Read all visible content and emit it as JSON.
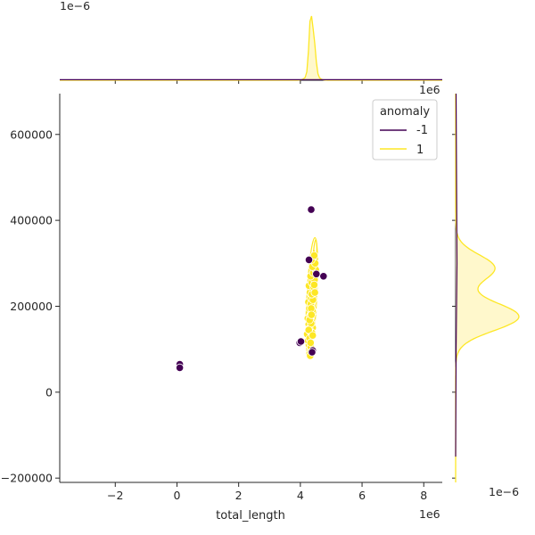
{
  "chart_data": {
    "type": "scatter",
    "xlabel": "total_length",
    "ylabel": "",
    "x_offset_label": "1e6",
    "xlim": [
      -3.8,
      8.6
    ],
    "ylim": [
      -210000,
      695000
    ],
    "x_ticks": [
      -2,
      0,
      2,
      4,
      6,
      8
    ],
    "x_tick_labels": [
      "−2",
      "0",
      "2",
      "4",
      "6",
      "8"
    ],
    "y_ticks": [
      -200000,
      0,
      200000,
      400000,
      600000
    ],
    "y_tick_labels": [
      "−200000",
      "0",
      "200000",
      "400000",
      "600000"
    ],
    "marginal_top_offset_label": "1e−6",
    "marginal_right_offset_label": "1e−6",
    "marginal_right_top_label": "1e6",
    "legend": {
      "title": "anomaly",
      "placement": "top-right",
      "entries": [
        {
          "label": "-1",
          "color": "#440154"
        },
        {
          "label": "1",
          "color": "#fde725"
        }
      ]
    },
    "colors": {
      "anomaly_-1": "#440154",
      "anomaly_1": "#fde725",
      "fill_1": "#fff7c6"
    },
    "series": [
      {
        "name": "-1",
        "color": "#440154",
        "points": [
          [
            0.09,
            65000
          ],
          [
            0.09,
            57000
          ],
          [
            4.35,
            425000
          ],
          [
            4.28,
            308000
          ],
          [
            4.75,
            270000
          ],
          [
            4.52,
            275000
          ],
          [
            3.98,
            115000
          ],
          [
            4.02,
            118000
          ],
          [
            4.4,
            97000
          ],
          [
            4.38,
            93000
          ]
        ]
      },
      {
        "name": "1",
        "color": "#fde725",
        "points": [
          [
            4.3,
            90000
          ],
          [
            4.33,
            100000
          ],
          [
            4.28,
            110000
          ],
          [
            4.25,
            120000
          ],
          [
            4.35,
            128000
          ],
          [
            4.22,
            135000
          ],
          [
            4.31,
            142000
          ],
          [
            4.4,
            150000
          ],
          [
            4.27,
            158000
          ],
          [
            4.36,
            165000
          ],
          [
            4.24,
            172000
          ],
          [
            4.33,
            180000
          ],
          [
            4.42,
            188000
          ],
          [
            4.29,
            195000
          ],
          [
            4.38,
            202000
          ],
          [
            4.26,
            210000
          ],
          [
            4.35,
            218000
          ],
          [
            4.44,
            225000
          ],
          [
            4.31,
            232000
          ],
          [
            4.4,
            240000
          ],
          [
            4.28,
            248000
          ],
          [
            4.37,
            255000
          ],
          [
            4.46,
            262000
          ],
          [
            4.33,
            270000
          ],
          [
            4.42,
            278000
          ],
          [
            4.5,
            285000
          ],
          [
            4.39,
            292000
          ],
          [
            4.48,
            300000
          ],
          [
            4.36,
            308000
          ],
          [
            4.45,
            318000
          ],
          [
            4.32,
            85000
          ],
          [
            4.34,
            105000
          ],
          [
            4.3,
            125000
          ],
          [
            4.38,
            138000
          ],
          [
            4.29,
            148000
          ],
          [
            4.35,
            160000
          ],
          [
            4.32,
            175000
          ],
          [
            4.39,
            190000
          ],
          [
            4.34,
            205000
          ],
          [
            4.41,
            215000
          ],
          [
            4.37,
            228000
          ],
          [
            4.43,
            245000
          ],
          [
            4.35,
            195000
          ],
          [
            4.3,
            168000
          ],
          [
            4.36,
            180000
          ],
          [
            4.27,
            145000
          ],
          [
            4.33,
            115000
          ],
          [
            4.4,
            132000
          ],
          [
            4.45,
            250000
          ],
          [
            4.47,
            232000
          ]
        ]
      }
    ]
  }
}
